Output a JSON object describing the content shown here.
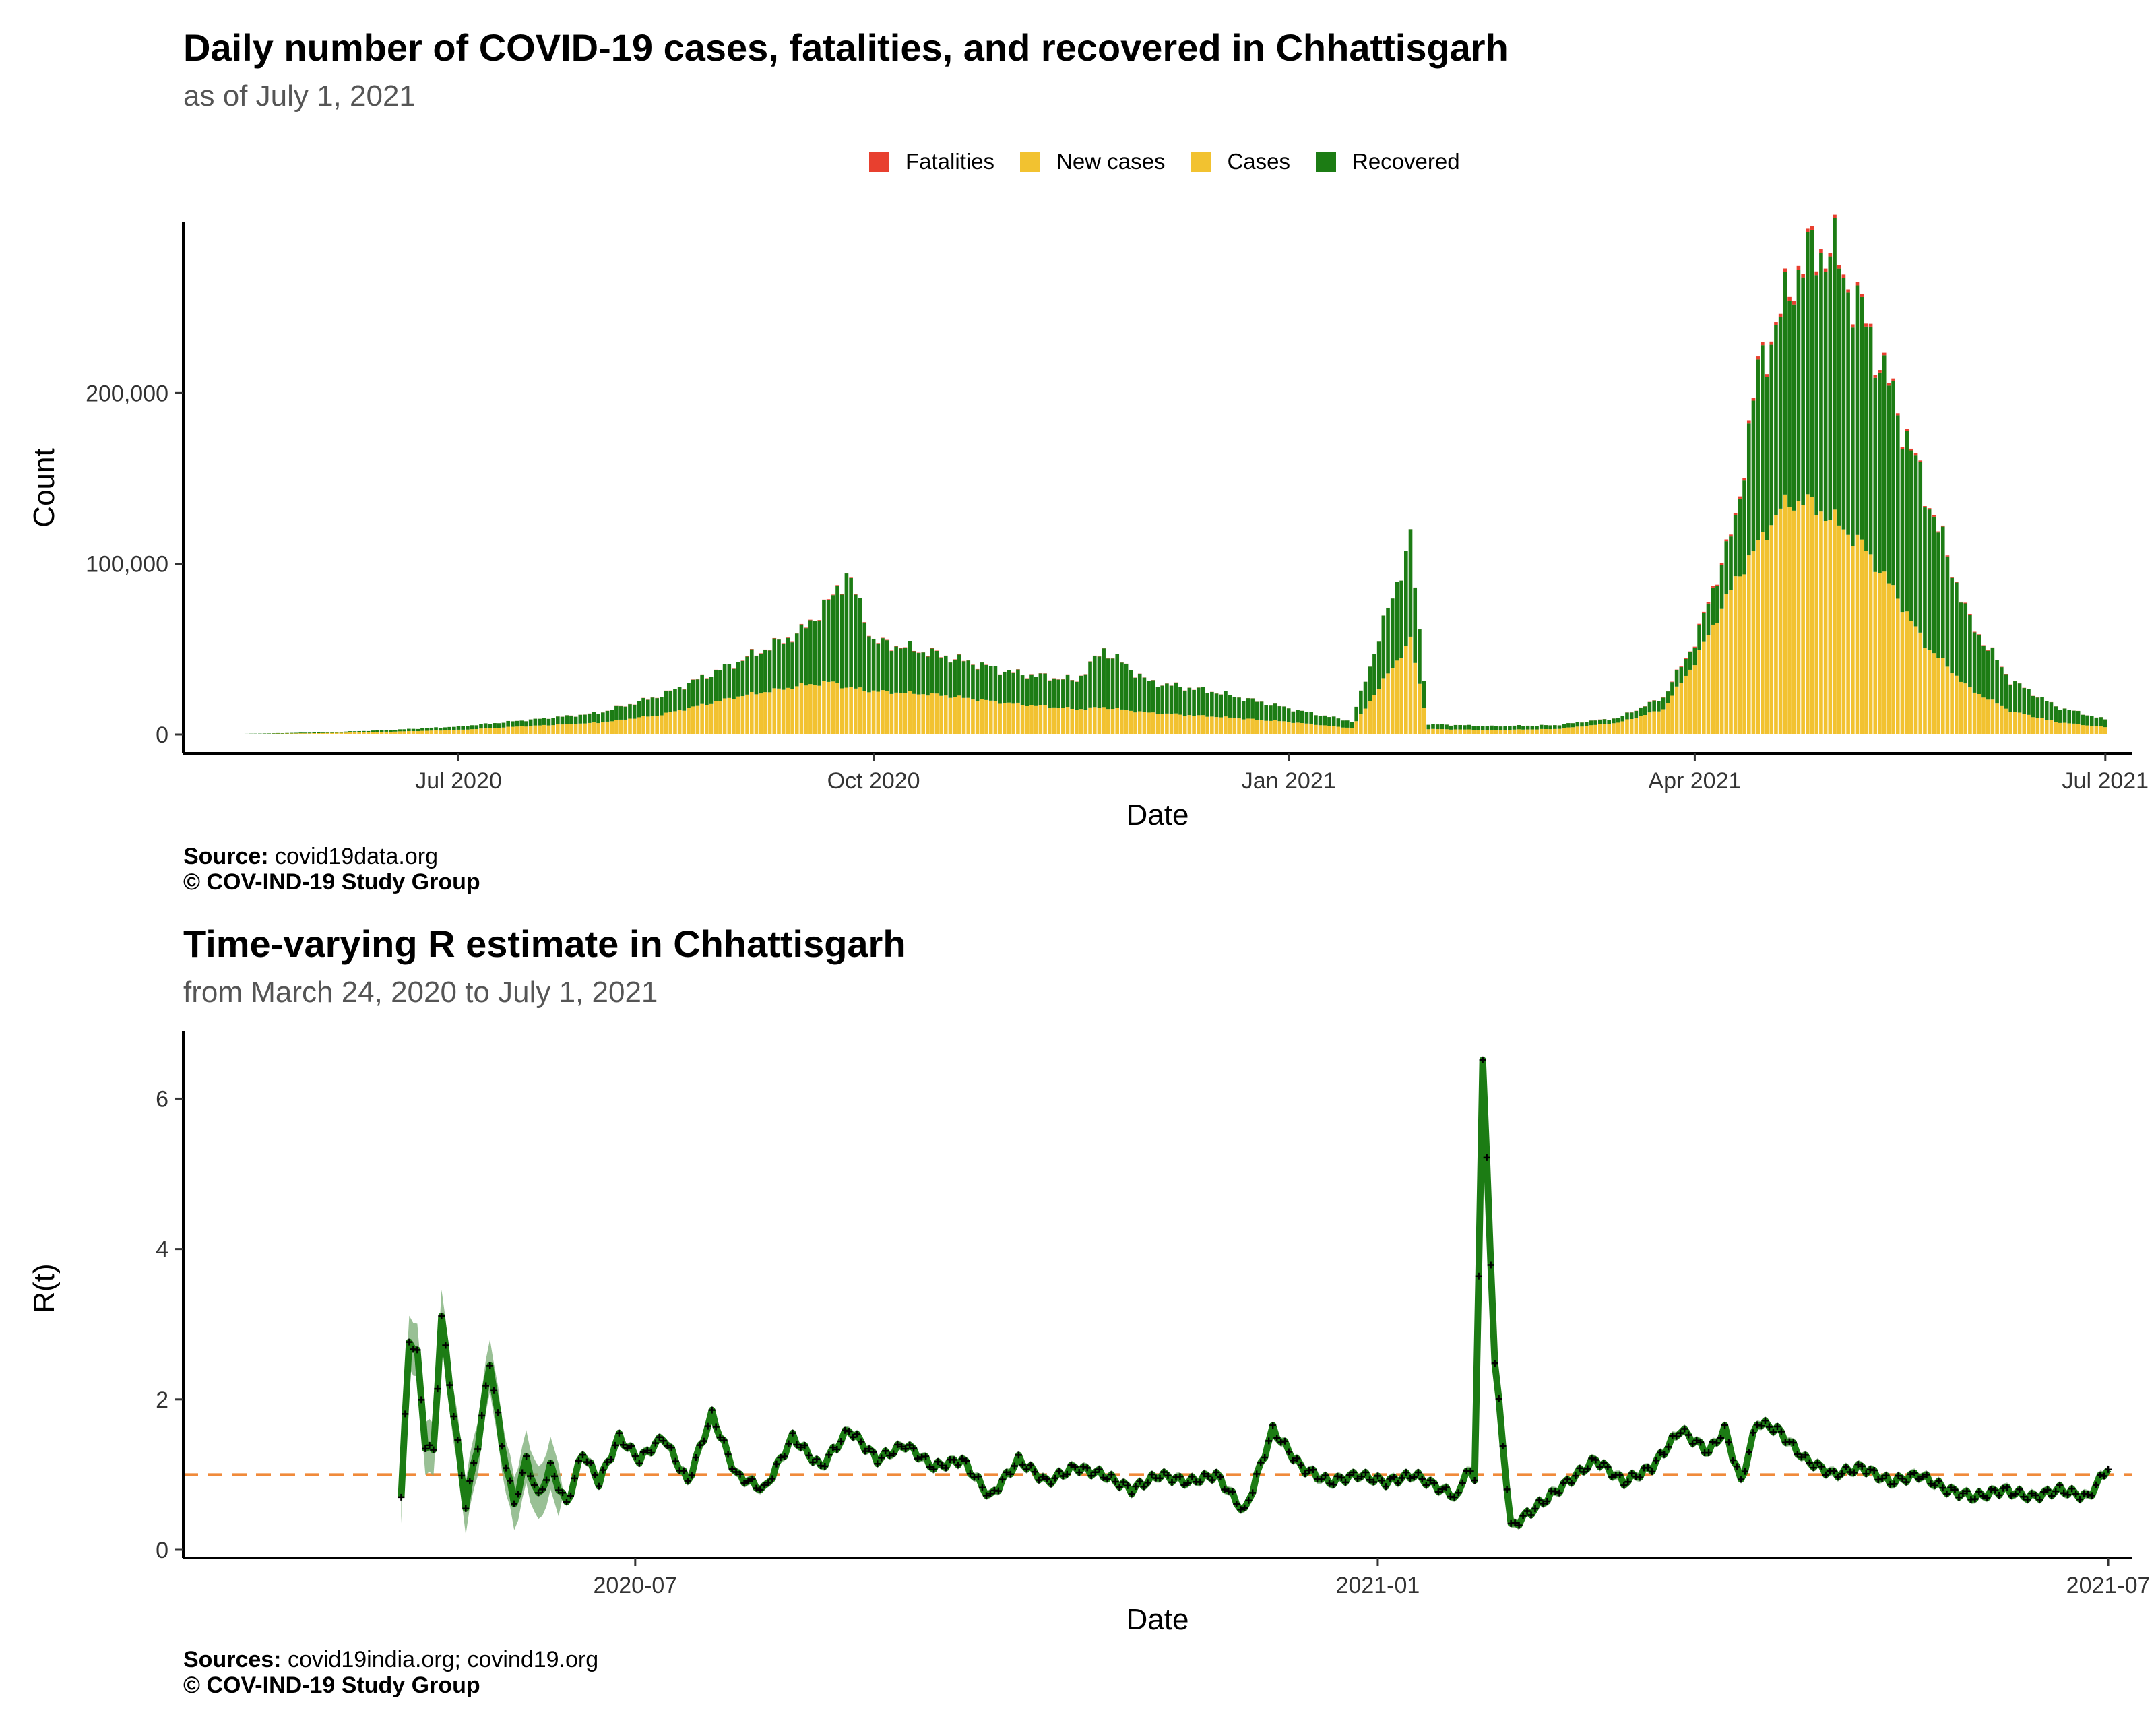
{
  "colors": {
    "fatalities": "#e8402f",
    "new_cases": "#f2c230",
    "cases": "#f2c230",
    "recovered": "#1c7c14",
    "r_line": "#1c7c14",
    "r_band": "#7fb07a",
    "reference": "#f08a3a"
  },
  "chart_data": [
    {
      "type": "bar",
      "title": "Daily number of COVID-19 cases, fatalities, and recovered in Chhattisgarh",
      "subtitle": "as of July  1, 2021",
      "xlabel": "Date",
      "ylabel": "Count",
      "x_ticks": [
        "Jul 2020",
        "Oct 2020",
        "Jan 2021",
        "Apr 2021",
        "Jul 2021"
      ],
      "y_ticks": [
        "0",
        "100,000",
        "200,000"
      ],
      "ylim": [
        0,
        300000
      ],
      "xlim": [
        "2020-05-01",
        "2021-07-07"
      ],
      "grid": false,
      "legend_position": "top",
      "legend": [
        "Fatalities",
        "New cases",
        "Cases",
        "Recovered"
      ],
      "x": [
        "2020-05-15",
        "2020-06-01",
        "2020-06-15",
        "2020-07-01",
        "2020-07-15",
        "2020-08-01",
        "2020-08-15",
        "2020-09-01",
        "2020-09-15",
        "2020-09-22",
        "2020-09-25",
        "2020-10-01",
        "2020-10-15",
        "2020-11-01",
        "2020-11-15",
        "2020-11-21",
        "2020-12-01",
        "2020-12-15",
        "2021-01-01",
        "2021-01-15",
        "2021-01-28",
        "2021-02-01",
        "2021-02-15",
        "2021-03-01",
        "2021-03-15",
        "2021-03-25",
        "2021-04-01",
        "2021-04-10",
        "2021-04-15",
        "2021-04-20",
        "2021-04-25",
        "2021-05-01",
        "2021-05-08",
        "2021-05-15",
        "2021-05-22",
        "2021-06-01",
        "2021-06-10",
        "2021-06-20",
        "2021-07-01"
      ],
      "series": [
        {
          "name": "Cases",
          "values": [
            300,
            800,
            1500,
            2500,
            4500,
            6500,
            11000,
            21000,
            27000,
            29000,
            26000,
            24000,
            22000,
            17000,
            14000,
            15000,
            12000,
            10000,
            7000,
            3500,
            52000,
            3000,
            2500,
            3000,
            6500,
            14000,
            40000,
            85000,
            105000,
            125000,
            130000,
            120000,
            105000,
            80000,
            50000,
            25000,
            13000,
            7000,
            4000
          ]
        },
        {
          "name": "Recovered",
          "values": [
            100,
            400,
            800,
            1800,
            3000,
            5000,
            10000,
            18000,
            28000,
            44000,
            60000,
            26000,
            21000,
            16000,
            15000,
            30000,
            16000,
            13000,
            7000,
            3500,
            52000,
            2500,
            2000,
            2000,
            2500,
            6000,
            10000,
            30000,
            90000,
            100000,
            125000,
            140000,
            120000,
            100000,
            80000,
            35000,
            16000,
            8000,
            4000
          ]
        },
        {
          "name": "Fatalities",
          "values": [
            0,
            0,
            0,
            10,
            20,
            60,
            120,
            200,
            280,
            300,
            260,
            240,
            200,
            150,
            120,
            130,
            100,
            80,
            40,
            20,
            25,
            20,
            15,
            20,
            60,
            150,
            500,
            1200,
            1700,
            2000,
            2200,
            2100,
            1800,
            1300,
            800,
            400,
            150,
            60,
            25
          ]
        }
      ]
    },
    {
      "type": "line",
      "title": "Time-varying R estimate in Chhattisgarh",
      "subtitle": "from March 24, 2020 to July  1, 2021",
      "xlabel": "Date",
      "ylabel": "R(t)",
      "x_ticks": [
        "2020-07",
        "2021-01",
        "2021-07"
      ],
      "y_ticks": [
        "0",
        "2",
        "4",
        "6"
      ],
      "ylim": [
        0,
        6.9
      ],
      "xlim": [
        "2020-03-11",
        "2021-07-07"
      ],
      "grid": false,
      "reference_line": 1,
      "x": [
        "2020-05-04",
        "2020-05-06",
        "2020-05-08",
        "2020-05-10",
        "2020-05-12",
        "2020-05-14",
        "2020-05-17",
        "2020-05-20",
        "2020-05-23",
        "2020-05-26",
        "2020-05-29",
        "2020-06-01",
        "2020-06-04",
        "2020-06-07",
        "2020-06-10",
        "2020-06-14",
        "2020-06-18",
        "2020-06-22",
        "2020-06-27",
        "2020-07-02",
        "2020-07-08",
        "2020-07-14",
        "2020-07-20",
        "2020-07-26",
        "2020-08-02",
        "2020-08-09",
        "2020-08-16",
        "2020-08-23",
        "2020-08-30",
        "2020-09-06",
        "2020-09-13",
        "2020-09-20",
        "2020-09-27",
        "2020-10-04",
        "2020-10-11",
        "2020-10-18",
        "2020-10-25",
        "2020-11-01",
        "2020-11-08",
        "2020-11-15",
        "2020-11-22",
        "2020-11-29",
        "2020-12-06",
        "2020-12-13",
        "2020-12-20",
        "2020-12-27",
        "2021-01-03",
        "2021-01-10",
        "2021-01-17",
        "2021-01-21",
        "2021-01-23",
        "2021-01-25",
        "2021-01-27",
        "2021-01-30",
        "2021-02-03",
        "2021-02-10",
        "2021-02-17",
        "2021-02-24",
        "2021-03-03",
        "2021-03-10",
        "2021-03-17",
        "2021-03-24",
        "2021-03-28",
        "2021-04-01",
        "2021-04-05",
        "2021-04-10",
        "2021-04-17",
        "2021-04-24",
        "2021-05-01",
        "2021-05-08",
        "2021-05-15",
        "2021-05-22",
        "2021-05-29",
        "2021-06-05",
        "2021-06-12",
        "2021-06-19",
        "2021-06-26",
        "2021-07-01"
      ],
      "series": [
        {
          "name": "R(t)",
          "values": [
            0.7,
            2.8,
            2.6,
            1.4,
            1.3,
            3.1,
            1.8,
            0.6,
            1.4,
            2.5,
            1.4,
            0.6,
            1.2,
            0.7,
            1.1,
            0.6,
            1.3,
            0.9,
            1.5,
            1.2,
            1.5,
            0.9,
            1.8,
            1.0,
            0.8,
            1.5,
            1.1,
            1.6,
            1.2,
            1.4,
            1.1,
            1.2,
            0.7,
            1.2,
            0.9,
            1.1,
            1.0,
            0.8,
            1.0,
            0.9,
            1.0,
            0.5,
            1.6,
            1.1,
            0.9,
            1.0,
            0.9,
            1.0,
            0.8,
            0.7,
            1.1,
            0.9,
            6.5,
            2.5,
            0.3,
            0.6,
            0.9,
            1.2,
            0.9,
            1.1,
            1.6,
            1.3,
            1.6,
            0.9,
            1.7,
            1.6,
            1.2,
            1.0,
            1.1,
            0.9,
            1.0,
            0.8,
            0.7,
            0.8,
            0.7,
            0.8,
            0.7,
            1.1
          ]
        }
      ]
    }
  ],
  "legend_items": [
    {
      "label": "Fatalities",
      "color": "#e8402f"
    },
    {
      "label": "New cases",
      "color": "#f2c230"
    },
    {
      "label": "Cases",
      "color": "#f2c230"
    },
    {
      "label": "Recovered",
      "color": "#1c7c14"
    }
  ],
  "captions": {
    "top_source_label": "Source:",
    "top_source_text": " covid19data.org",
    "top_copyright": "© COV-IND-19 Study Group",
    "bottom_source_label": "Sources:",
    "bottom_source_text": " covid19india.org; covind19.org",
    "bottom_copyright": "© COV-IND-19 Study Group"
  }
}
